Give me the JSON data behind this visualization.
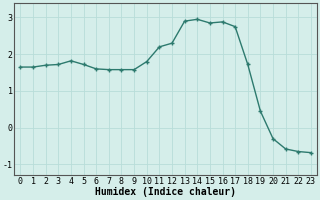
{
  "x": [
    0,
    1,
    2,
    3,
    4,
    5,
    6,
    7,
    8,
    9,
    10,
    11,
    12,
    13,
    14,
    15,
    16,
    17,
    18,
    19,
    20,
    21,
    22,
    23
  ],
  "y": [
    1.65,
    1.65,
    1.7,
    1.72,
    1.82,
    1.72,
    1.6,
    1.58,
    1.58,
    1.58,
    1.8,
    2.2,
    2.3,
    2.9,
    2.95,
    2.85,
    2.88,
    2.75,
    1.72,
    0.45,
    -0.3,
    -0.58,
    -0.65,
    -0.68
  ],
  "line_color": "#2d7a6e",
  "marker": "+",
  "marker_size": 3,
  "marker_linewidth": 1.0,
  "bg_color": "#d5eeea",
  "grid_color": "#b8ddd9",
  "xlabel": "Humidex (Indice chaleur)",
  "xlabel_fontsize": 7,
  "tick_fontsize": 6,
  "ylim": [
    -1.3,
    3.4
  ],
  "xlim": [
    -0.5,
    23.5
  ],
  "yticks": [
    -1,
    0,
    1,
    2,
    3
  ],
  "xticks": [
    0,
    1,
    2,
    3,
    4,
    5,
    6,
    7,
    8,
    9,
    10,
    11,
    12,
    13,
    14,
    15,
    16,
    17,
    18,
    19,
    20,
    21,
    22,
    23
  ],
  "linewidth": 1.0,
  "spine_color": "#555555"
}
